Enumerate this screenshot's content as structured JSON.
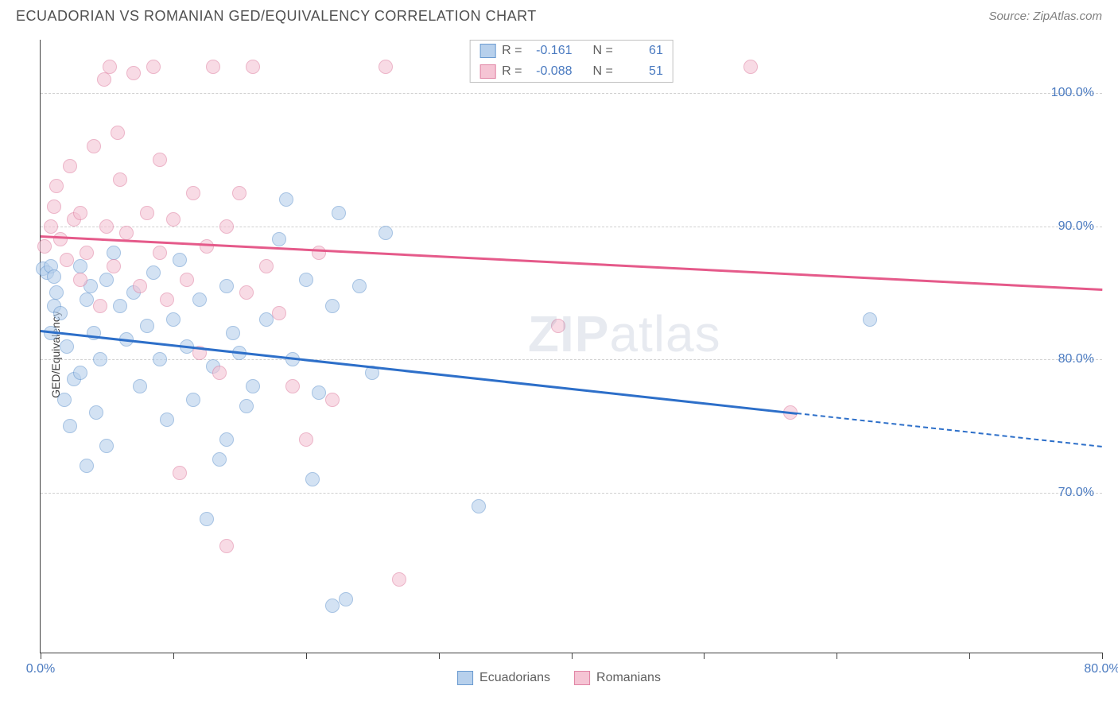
{
  "title": "ECUADORIAN VS ROMANIAN GED/EQUIVALENCY CORRELATION CHART",
  "source": "Source: ZipAtlas.com",
  "ylabel": "GED/Equivalency",
  "watermark_bold": "ZIP",
  "watermark_light": "atlas",
  "chart": {
    "type": "scatter",
    "xlim": [
      0,
      80
    ],
    "ylim": [
      58,
      104
    ],
    "xticks": [
      0,
      10,
      20,
      30,
      40,
      50,
      60,
      70,
      80
    ],
    "xtick_labels": {
      "0": "0.0%",
      "80": "80.0%"
    },
    "yticks": [
      70,
      80,
      90,
      100
    ],
    "ytick_labels": [
      "70.0%",
      "80.0%",
      "90.0%",
      "100.0%"
    ],
    "background_color": "#ffffff",
    "grid_color": "#d0d0d0",
    "axis_color": "#404040",
    "label_color": "#4a7ac0",
    "marker_radius": 9,
    "marker_opacity": 0.6
  },
  "series": [
    {
      "name": "Ecuadorians",
      "label": "Ecuadorians",
      "fill": "#b7d0ec",
      "stroke": "#6b9bd1",
      "trend_color": "#2d6fc9",
      "R": "-0.161",
      "N": "61",
      "trend": {
        "x1": 0,
        "y1": 82.2,
        "x2": 57,
        "y2": 76.0,
        "x2_dash": 80,
        "y2_dash": 73.5
      },
      "points": [
        [
          0.2,
          86.8
        ],
        [
          0.5,
          86.5
        ],
        [
          0.8,
          87.0
        ],
        [
          1.0,
          86.2
        ],
        [
          1.2,
          85.0
        ],
        [
          1.0,
          84.0
        ],
        [
          0.8,
          82.0
        ],
        [
          1.5,
          83.5
        ],
        [
          2.0,
          81.0
        ],
        [
          2.5,
          78.5
        ],
        [
          1.8,
          77.0
        ],
        [
          2.2,
          75.0
        ],
        [
          3.0,
          79.0
        ],
        [
          3.5,
          84.5
        ],
        [
          3.0,
          87.0
        ],
        [
          3.8,
          85.5
        ],
        [
          4.0,
          82.0
        ],
        [
          4.5,
          80.0
        ],
        [
          5.0,
          86.0
        ],
        [
          5.5,
          88.0
        ],
        [
          4.2,
          76.0
        ],
        [
          5.0,
          73.5
        ],
        [
          3.5,
          72.0
        ],
        [
          6.0,
          84.0
        ],
        [
          6.5,
          81.5
        ],
        [
          7.0,
          85.0
        ],
        [
          7.5,
          78.0
        ],
        [
          8.0,
          82.5
        ],
        [
          8.5,
          86.5
        ],
        [
          9.0,
          80.0
        ],
        [
          9.5,
          75.5
        ],
        [
          10.0,
          83.0
        ],
        [
          10.5,
          87.5
        ],
        [
          11.0,
          81.0
        ],
        [
          11.5,
          77.0
        ],
        [
          12.0,
          84.5
        ],
        [
          12.5,
          68.0
        ],
        [
          13.0,
          79.5
        ],
        [
          13.5,
          72.5
        ],
        [
          14.0,
          85.5
        ],
        [
          14.5,
          82.0
        ],
        [
          15.0,
          80.5
        ],
        [
          15.5,
          76.5
        ],
        [
          16.0,
          78.0
        ],
        [
          17.0,
          83.0
        ],
        [
          18.0,
          89.0
        ],
        [
          18.5,
          92.0
        ],
        [
          19.0,
          80.0
        ],
        [
          20.0,
          86.0
        ],
        [
          20.5,
          71.0
        ],
        [
          21.0,
          77.5
        ],
        [
          22.0,
          84.0
        ],
        [
          22.5,
          91.0
        ],
        [
          23.0,
          62.0
        ],
        [
          24.0,
          85.5
        ],
        [
          25.0,
          79.0
        ],
        [
          26.0,
          89.5
        ],
        [
          33.0,
          69.0
        ],
        [
          62.5,
          83.0
        ],
        [
          22.0,
          61.5
        ],
        [
          14.0,
          74.0
        ]
      ]
    },
    {
      "name": "Romanians",
      "label": "Romanians",
      "fill": "#f5c4d4",
      "stroke": "#e083a4",
      "trend_color": "#e55a8a",
      "R": "-0.088",
      "N": "51",
      "trend": {
        "x1": 0,
        "y1": 89.3,
        "x2": 80,
        "y2": 85.3
      },
      "points": [
        [
          0.3,
          88.5
        ],
        [
          0.8,
          90.0
        ],
        [
          1.0,
          91.5
        ],
        [
          1.5,
          89.0
        ],
        [
          1.2,
          93.0
        ],
        [
          2.0,
          87.5
        ],
        [
          2.5,
          90.5
        ],
        [
          2.2,
          94.5
        ],
        [
          3.0,
          86.0
        ],
        [
          3.5,
          88.0
        ],
        [
          3.0,
          91.0
        ],
        [
          4.0,
          96.0
        ],
        [
          4.5,
          84.0
        ],
        [
          5.0,
          90.0
        ],
        [
          4.8,
          101.0
        ],
        [
          5.5,
          87.0
        ],
        [
          5.2,
          102.0
        ],
        [
          6.0,
          93.5
        ],
        [
          6.5,
          89.5
        ],
        [
          7.0,
          101.5
        ],
        [
          5.8,
          97.0
        ],
        [
          7.5,
          85.5
        ],
        [
          8.0,
          91.0
        ],
        [
          8.5,
          102.0
        ],
        [
          9.0,
          88.0
        ],
        [
          9.5,
          84.5
        ],
        [
          9.0,
          95.0
        ],
        [
          10.0,
          90.5
        ],
        [
          10.5,
          71.5
        ],
        [
          11.0,
          86.0
        ],
        [
          11.5,
          92.5
        ],
        [
          12.0,
          80.5
        ],
        [
          12.5,
          88.5
        ],
        [
          13.0,
          102.0
        ],
        [
          13.5,
          79.0
        ],
        [
          14.0,
          90.0
        ],
        [
          14.0,
          66.0
        ],
        [
          15.0,
          92.5
        ],
        [
          15.5,
          85.0
        ],
        [
          16.0,
          102.0
        ],
        [
          17.0,
          87.0
        ],
        [
          18.0,
          83.5
        ],
        [
          19.0,
          78.0
        ],
        [
          20.0,
          74.0
        ],
        [
          21.0,
          88.0
        ],
        [
          22.0,
          77.0
        ],
        [
          26.0,
          102.0
        ],
        [
          27.0,
          63.5
        ],
        [
          39.0,
          82.5
        ],
        [
          53.5,
          102.0
        ],
        [
          56.5,
          76.0
        ]
      ]
    }
  ],
  "legend_top": {
    "r_label": "R =",
    "n_label": "N ="
  },
  "colors": {
    "title": "#505050",
    "source": "#808080",
    "text": "#606060"
  }
}
